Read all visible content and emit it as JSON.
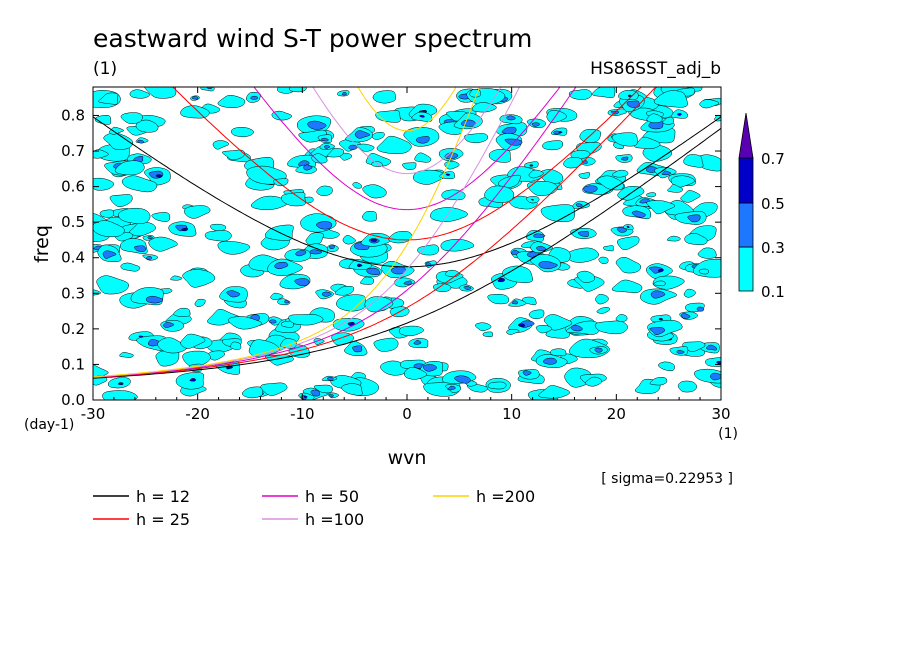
{
  "chart_data": {
    "type": "heatmap",
    "title": "eastward wind S-T power spectrum",
    "subtitle_left": "(1)",
    "subtitle_right": "HS86SST_adj_b",
    "xlabel": "wvn",
    "ylabel": "freq",
    "x_unit": "(1)",
    "y_unit": "(day-1)",
    "xlim": [
      -30,
      30
    ],
    "ylim": [
      0,
      0.88
    ],
    "x_ticks": [
      -30,
      -20,
      -10,
      0,
      10,
      20,
      30
    ],
    "x_tick_labels": [
      "-30",
      "-20",
      "-10",
      "0",
      "10",
      "20",
      "30"
    ],
    "y_ticks": [
      0,
      0.1,
      0.2,
      0.3,
      0.4,
      0.5,
      0.6,
      0.7,
      0.8
    ],
    "y_tick_labels": [
      "0.0",
      "0.1",
      "0.2",
      "0.3",
      "0.4",
      "0.5",
      "0.6",
      "0.7",
      "0.8"
    ],
    "sigma_text": "[ sigma=0.22953 ]",
    "contour_levels": [
      0.1,
      0.3,
      0.5,
      0.7
    ],
    "colorbar_labels": [
      "0.1",
      "0.3",
      "0.5",
      "0.7"
    ],
    "colorbar_colors": [
      "#00ffff",
      "#1e78ff",
      "#0000c8",
      "#5a00b4"
    ],
    "dispersion_curves": [
      {
        "label": "h = 12",
        "h": 12,
        "color": "#000000"
      },
      {
        "label": "h = 25",
        "h": 25,
        "color": "#ff0000"
      },
      {
        "label": "h = 50",
        "h": 50,
        "color": "#e000c8"
      },
      {
        "label": "h =100",
        "h": 100,
        "color": "#d890e0"
      },
      {
        "label": "h =200",
        "h": 200,
        "color": "#ffd200"
      }
    ]
  }
}
